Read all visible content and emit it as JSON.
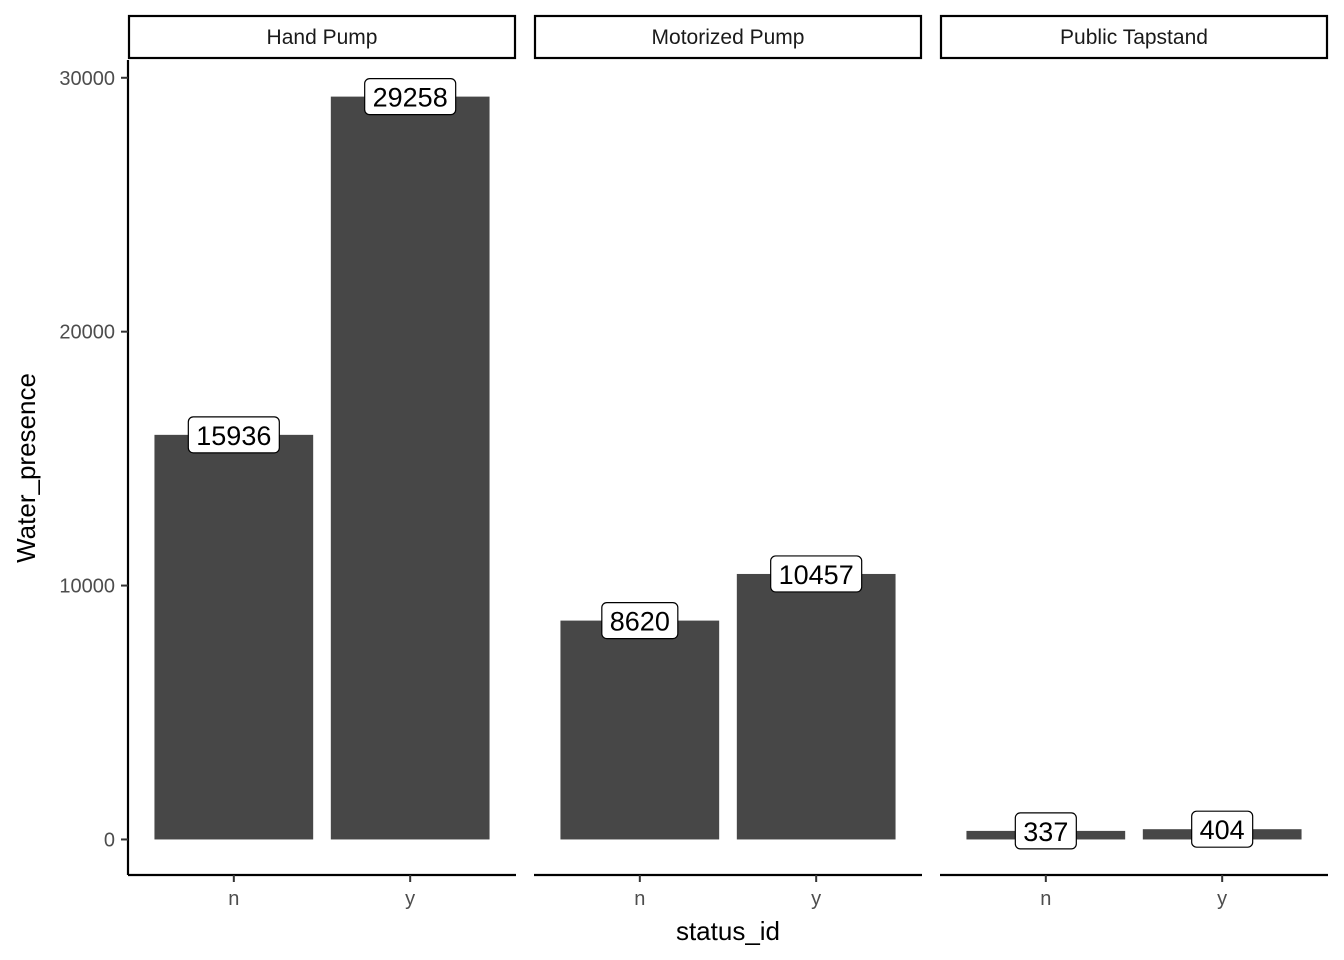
{
  "chart_data": {
    "type": "bar",
    "facet_by": "water_source",
    "facets": [
      {
        "name": "Hand Pump",
        "categories": [
          "n",
          "y"
        ],
        "values": [
          15936,
          29258
        ]
      },
      {
        "name": "Motorized Pump",
        "categories": [
          "n",
          "y"
        ],
        "values": [
          8620,
          10457
        ]
      },
      {
        "name": "Public Tapstand",
        "categories": [
          "n",
          "y"
        ],
        "values": [
          337,
          404
        ]
      }
    ],
    "xlabel": "status_id",
    "ylabel": "Water_presence",
    "ylim": [
      -1400,
      30700
    ],
    "yticks": [
      0,
      10000,
      20000,
      30000
    ],
    "bar_color": "#474747",
    "grid": false,
    "legend": "none"
  }
}
